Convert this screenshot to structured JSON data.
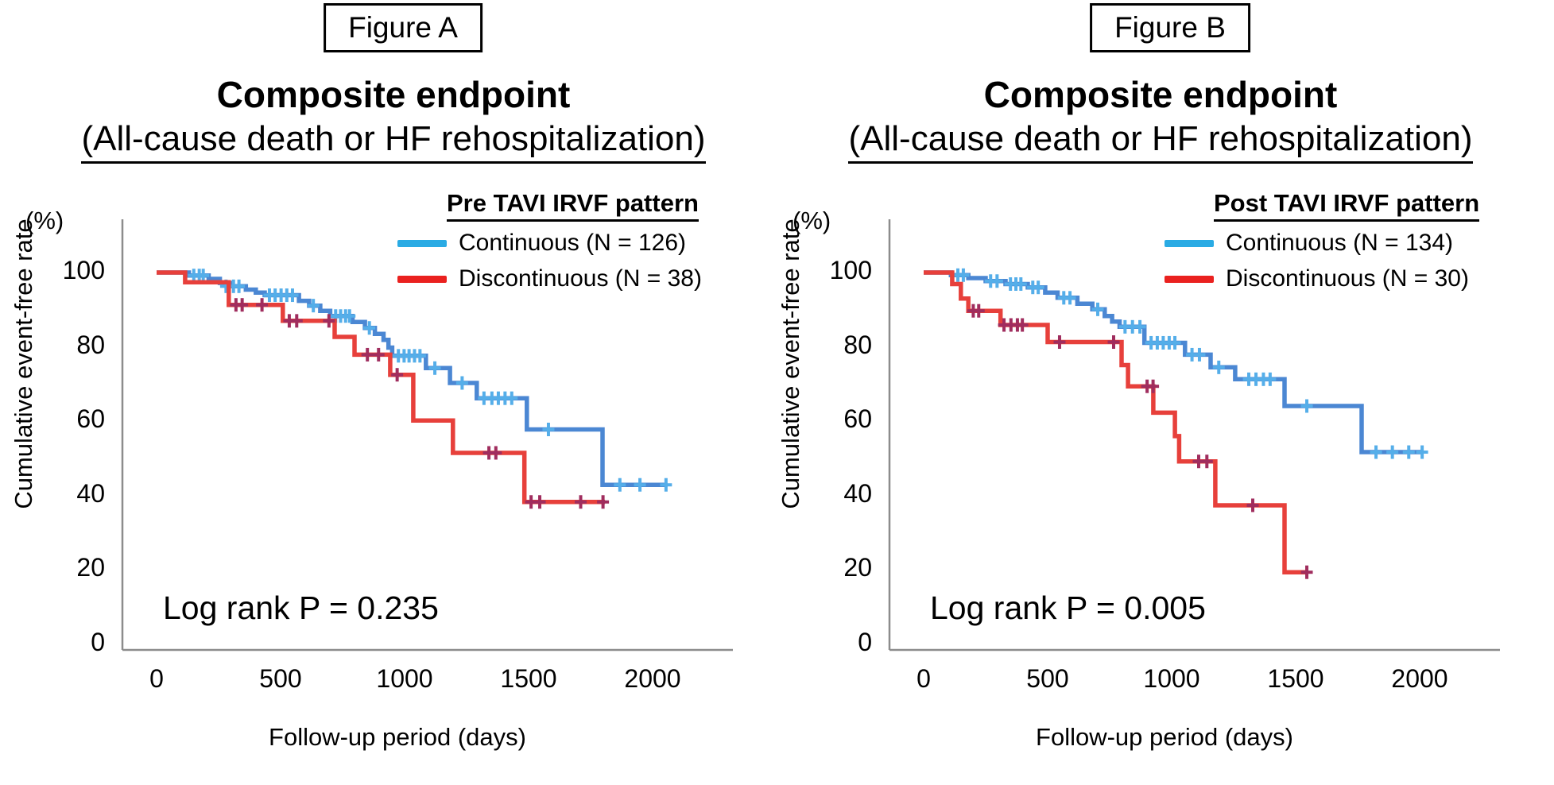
{
  "page": {
    "background": "#ffffff"
  },
  "panels": [
    {
      "figure_label": "Figure A",
      "title": "Composite endpoint",
      "subtitle": "(All-cause death or HF rehospitalization)",
      "y_unit_label": "(%)",
      "y_axis_label": "Cumulative event-free rate",
      "x_axis_label": "Follow-up period (days)",
      "log_rank_label": "Log rank P = 0.235",
      "legend": {
        "header": "Pre TAVI IRVF pattern",
        "items": [
          {
            "label": "Continuous  (N = 126)",
            "swatch_color": "#2aabe4"
          },
          {
            "label": "Discontinuous  (N = 38)",
            "swatch_color": "#ea211f"
          }
        ]
      }
    },
    {
      "figure_label": "Figure B",
      "title": "Composite endpoint",
      "subtitle": "(All-cause death or HF rehospitalization)",
      "y_unit_label": "(%)",
      "y_axis_label": "Cumulative event-free rate",
      "x_axis_label": "Follow-up period (days)",
      "log_rank_label": "Log rank P = 0.005",
      "legend": {
        "header": "Post TAVI IRVF pattern",
        "items": [
          {
            "label": "Continuous  (N = 134)",
            "swatch_color": "#2aabe4"
          },
          {
            "label": "Discontinuous  (N = 30)",
            "swatch_color": "#ea211f"
          }
        ]
      }
    }
  ],
  "chart_data": [
    {
      "type": "line",
      "subtype": "kaplan-meier-step",
      "title": "Composite endpoint (All-cause death or HF rehospitalization)",
      "group_label": "Pre TAVI IRVF pattern",
      "xlabel": "Follow-up period (days)",
      "ylabel": "Cumulative event-free rate (%)",
      "xlim": [
        0,
        2150
      ],
      "ylim": [
        0,
        100
      ],
      "xticks": [
        0,
        500,
        1000,
        1500,
        2000
      ],
      "yticks": [
        100,
        80,
        60,
        40,
        20,
        0
      ],
      "log_rank_p": 0.235,
      "axis_color": "#8c8c8c",
      "series": [
        {
          "name": "Continuous",
          "n": 126,
          "color": "#4b87d3",
          "censor_color": "#55aee9",
          "end_day": 2060,
          "steps": [
            [
              0,
              100
            ],
            [
              130,
              99.2
            ],
            [
              210,
              98.3
            ],
            [
              255,
              97.2
            ],
            [
              300,
              96.3
            ],
            [
              360,
              95.4
            ],
            [
              400,
              94.6
            ],
            [
              436,
              93.9
            ],
            [
              574,
              92.4
            ],
            [
              615,
              91.1
            ],
            [
              660,
              89.7
            ],
            [
              700,
              88.3
            ],
            [
              790,
              86.7
            ],
            [
              840,
              85.1
            ],
            [
              880,
              83.5
            ],
            [
              915,
              81.9
            ],
            [
              935,
              79.8
            ],
            [
              950,
              77.6
            ],
            [
              1086,
              74.3
            ],
            [
              1183,
              70.3
            ],
            [
              1291,
              66.2
            ],
            [
              1493,
              57.8
            ],
            [
              1798,
              42.9
            ]
          ],
          "censors": [
            [
              150,
              99.2
            ],
            [
              172,
              99.2
            ],
            [
              188,
              99.2
            ],
            [
              280,
              96.3
            ],
            [
              310,
              96.3
            ],
            [
              332,
              96.3
            ],
            [
              455,
              93.9
            ],
            [
              478,
              93.9
            ],
            [
              502,
              93.9
            ],
            [
              525,
              93.9
            ],
            [
              548,
              93.9
            ],
            [
              632,
              91.1
            ],
            [
              722,
              88.3
            ],
            [
              742,
              88.3
            ],
            [
              762,
              88.3
            ],
            [
              778,
              88.3
            ],
            [
              858,
              85.1
            ],
            [
              975,
              77.6
            ],
            [
              998,
              77.6
            ],
            [
              1018,
              77.6
            ],
            [
              1040,
              77.6
            ],
            [
              1062,
              77.6
            ],
            [
              1122,
              74.3
            ],
            [
              1232,
              70.3
            ],
            [
              1320,
              66.2
            ],
            [
              1352,
              66.2
            ],
            [
              1378,
              66.2
            ],
            [
              1405,
              66.2
            ],
            [
              1432,
              66.2
            ],
            [
              1580,
              57.8
            ],
            [
              1868,
              42.9
            ],
            [
              1949,
              42.9
            ],
            [
              2054,
              42.9
            ]
          ]
        },
        {
          "name": "Discontinuous",
          "n": 38,
          "color": "#e7403b",
          "censor_color": "#a02d5e",
          "end_day": 1808,
          "steps": [
            [
              0,
              100
            ],
            [
              115,
              97.4
            ],
            [
              291,
              91.3
            ],
            [
              509,
              87.0
            ],
            [
              718,
              82.7
            ],
            [
              798,
              77.9
            ],
            [
              942,
              72.5
            ],
            [
              1035,
              60.2
            ],
            [
              1195,
              51.5
            ],
            [
              1483,
              38.3
            ]
          ],
          "censors": [
            [
              320,
              91.3
            ],
            [
              345,
              91.3
            ],
            [
              425,
              91.3
            ],
            [
              535,
              87.0
            ],
            [
              565,
              87.0
            ],
            [
              695,
              87.0
            ],
            [
              850,
              77.9
            ],
            [
              895,
              77.9
            ],
            [
              970,
              72.5
            ],
            [
              1340,
              51.5
            ],
            [
              1368,
              51.5
            ],
            [
              1510,
              38.3
            ],
            [
              1545,
              38.3
            ],
            [
              1710,
              38.3
            ],
            [
              1800,
              38.3
            ]
          ]
        }
      ]
    },
    {
      "type": "line",
      "subtype": "kaplan-meier-step",
      "title": "Composite endpoint (All-cause death or HF rehospitalization)",
      "group_label": "Post TAVI IRVF pattern",
      "xlabel": "Follow-up period (days)",
      "ylabel": "Cumulative event-free rate (%)",
      "xlim": [
        0,
        2150
      ],
      "ylim": [
        0,
        100
      ],
      "xticks": [
        0,
        500,
        1000,
        1500,
        2000
      ],
      "yticks": [
        100,
        80,
        60,
        40,
        20,
        0
      ],
      "log_rank_p": 0.005,
      "axis_color": "#8c8c8c",
      "series": [
        {
          "name": "Continuous",
          "n": 134,
          "color": "#4b87d3",
          "censor_color": "#55aee9",
          "end_day": 2016,
          "steps": [
            [
              0,
              100
            ],
            [
              110,
              99.3
            ],
            [
              180,
              98.5
            ],
            [
              250,
              97.7
            ],
            [
              330,
              96.9
            ],
            [
              420,
              96.0
            ],
            [
              490,
              94.6
            ],
            [
              540,
              93.2
            ],
            [
              620,
              91.6
            ],
            [
              680,
              90.1
            ],
            [
              730,
              88.3
            ],
            [
              760,
              86.8
            ],
            [
              790,
              85.4
            ],
            [
              890,
              81.1
            ],
            [
              1054,
              77.9
            ],
            [
              1157,
              74.5
            ],
            [
              1256,
              71.3
            ],
            [
              1455,
              64.1
            ],
            [
              1766,
              51.7
            ]
          ],
          "censors": [
            [
              138,
              99.3
            ],
            [
              160,
              99.3
            ],
            [
              270,
              97.7
            ],
            [
              296,
              97.7
            ],
            [
              350,
              96.9
            ],
            [
              372,
              96.9
            ],
            [
              392,
              96.9
            ],
            [
              440,
              96.0
            ],
            [
              462,
              96.0
            ],
            [
              565,
              93.2
            ],
            [
              590,
              93.2
            ],
            [
              702,
              90.1
            ],
            [
              812,
              85.4
            ],
            [
              842,
              85.4
            ],
            [
              872,
              85.4
            ],
            [
              917,
              81.1
            ],
            [
              942,
              81.1
            ],
            [
              966,
              81.1
            ],
            [
              990,
              81.1
            ],
            [
              1013,
              81.1
            ],
            [
              1082,
              77.9
            ],
            [
              1112,
              77.9
            ],
            [
              1190,
              74.5
            ],
            [
              1311,
              71.3
            ],
            [
              1340,
              71.3
            ],
            [
              1370,
              71.3
            ],
            [
              1397,
              71.3
            ],
            [
              1545,
              64.1
            ],
            [
              1824,
              51.7
            ],
            [
              1890,
              51.7
            ],
            [
              1956,
              51.7
            ],
            [
              2010,
              51.7
            ]
          ]
        },
        {
          "name": "Discontinuous",
          "n": 30,
          "color": "#e7403b",
          "censor_color": "#a02d5e",
          "end_day": 1551,
          "steps": [
            [
              0,
              100
            ],
            [
              115,
              96.9
            ],
            [
              150,
              93.0
            ],
            [
              180,
              89.7
            ],
            [
              310,
              85.9
            ],
            [
              500,
              81.3
            ],
            [
              798,
              75.1
            ],
            [
              824,
              69.4
            ],
            [
              926,
              62.3
            ],
            [
              1013,
              56.0
            ],
            [
              1030,
              49.2
            ],
            [
              1176,
              37.4
            ],
            [
              1455,
              19.4
            ]
          ],
          "censors": [
            [
              200,
              89.7
            ],
            [
              222,
              89.7
            ],
            [
              324,
              85.9
            ],
            [
              352,
              85.9
            ],
            [
              378,
              85.9
            ],
            [
              398,
              85.9
            ],
            [
              548,
              81.3
            ],
            [
              766,
              81.3
            ],
            [
              901,
              69.4
            ],
            [
              925,
              69.4
            ],
            [
              1109,
              49.2
            ],
            [
              1142,
              49.2
            ],
            [
              1327,
              37.4
            ],
            [
              1545,
              19.4
            ]
          ]
        }
      ]
    }
  ]
}
